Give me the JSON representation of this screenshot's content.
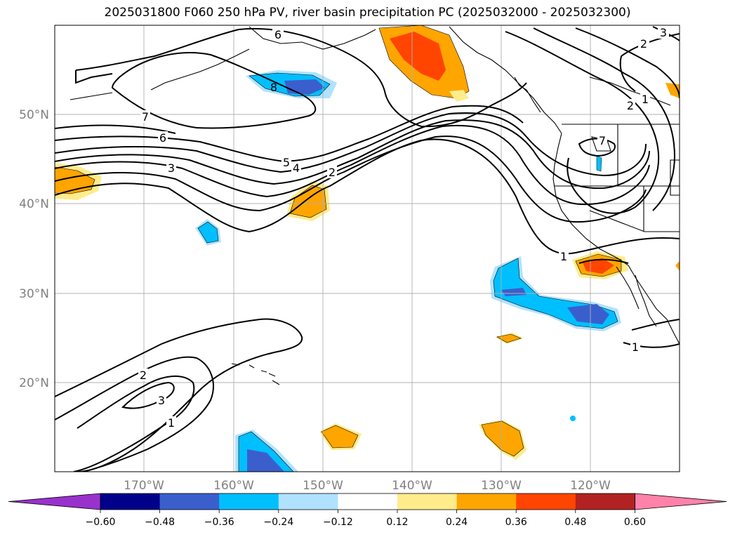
{
  "title": "2025031800 F060 250 hPa PV, river basin precipitation PC (2025032000 - 2025032300)",
  "lat_labels": [
    "50°N",
    "40°N",
    "30°N",
    "20°N"
  ],
  "lon_labels": [
    "170°W",
    "160°W",
    "150°W",
    "140°W",
    "130°W",
    "120°W"
  ],
  "contour_labels": [
    "6",
    "7",
    "6",
    "3",
    "5",
    "4",
    "2",
    "8",
    "2",
    "2",
    "1",
    "3",
    "7",
    "1",
    "1",
    "2",
    "3",
    "1"
  ],
  "colorbar": {
    "ticks": [
      "−0.60",
      "−0.48",
      "−0.36",
      "−0.24",
      "−0.12",
      "0.12",
      "0.24",
      "0.36",
      "0.48",
      "0.60"
    ],
    "colors": [
      "#9932cc",
      "#00008b",
      "#3a5fcd",
      "#00bfff",
      "#b0e2ff",
      "#ffffff",
      "#ffec8b",
      "#ffa500",
      "#ff4500",
      "#b22222",
      "#ff82ab"
    ]
  }
}
